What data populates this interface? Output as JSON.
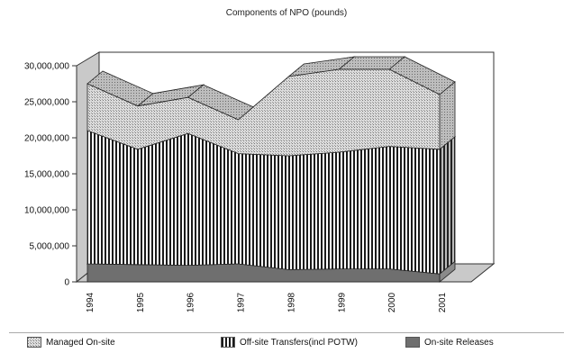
{
  "chart_data": {
    "type": "area",
    "stacked": true,
    "three_d": true,
    "title": "Components of NPO (pounds)",
    "xlabel": "",
    "ylabel": "",
    "categories": [
      "1994",
      "1995",
      "1996",
      "1997",
      "1998",
      "1999",
      "2000",
      "2001"
    ],
    "ylim": [
      0,
      30000000
    ],
    "y_ticks": [
      "0",
      "5,000,000",
      "10,000,000",
      "15,000,000",
      "20,000,000",
      "25,000,000",
      "30,000,000"
    ],
    "series": [
      {
        "name": "On-site Releases",
        "values": [
          2500000,
          2400000,
          2300000,
          2500000,
          1700000,
          1800000,
          1800000,
          1100000
        ],
        "color": "#6f6f6f"
      },
      {
        "name": "Off-site Transfers(incl POTW)",
        "values": [
          18500000,
          16000000,
          18300000,
          15300000,
          15800000,
          16200000,
          17000000,
          17300000
        ],
        "color": "#ffffff"
      },
      {
        "name": "Managed On-site",
        "values": [
          6500000,
          6000000,
          5000000,
          4700000,
          11000000,
          11500000,
          10700000,
          7600000
        ],
        "color": "#c8c8c8"
      }
    ],
    "legend": [
      "Managed On-site",
      "Off-site Transfers(incl POTW)",
      "On-site Releases"
    ],
    "legend_position": "bottom",
    "grid": false
  }
}
